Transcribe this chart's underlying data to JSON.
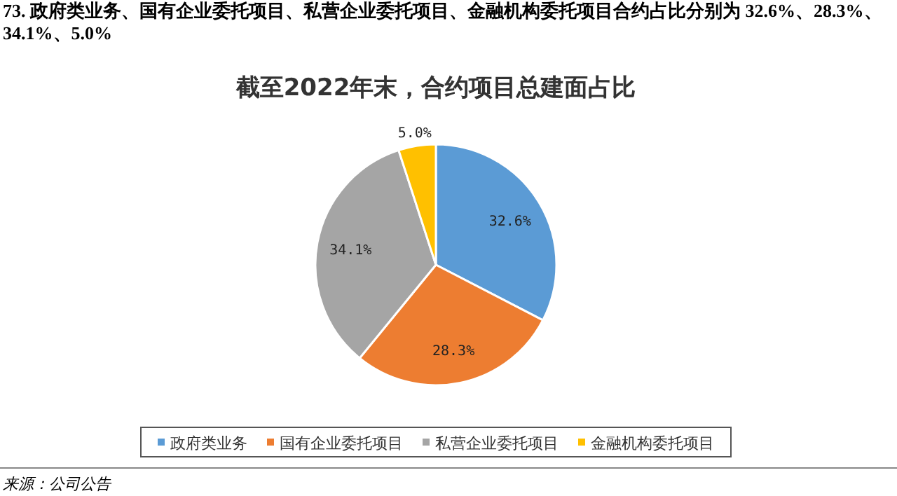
{
  "chart_data": {
    "type": "pie",
    "title": "截至2022年末，合约项目总建面占比",
    "subtitle": "73. 政府类业务、国有企业委托项目、私营企业委托项目、金融机构委托项目合约占比分别为 32.6%、28.3%、34.1%、5.0%",
    "annotations": [
      "来源：公司公告"
    ],
    "categories": [
      "政府类业务",
      "国有企业委托项目",
      "私营企业委托项目",
      "金融机构委托项目"
    ],
    "values": [
      32.6,
      28.3,
      34.1,
      5.0
    ],
    "colors": [
      "#5b9bd5",
      "#ed7d31",
      "#a5a5a5",
      "#ffc000"
    ],
    "value_labels": [
      "32.6%",
      "28.3%",
      "34.1%",
      "5.0%"
    ],
    "legend": "bottom"
  }
}
